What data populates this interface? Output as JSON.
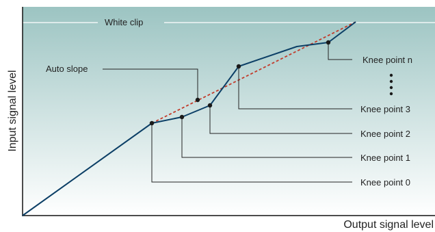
{
  "axes": {
    "x_label": "Output signal level",
    "y_label": "Input signal level"
  },
  "labels": {
    "white_clip": "White clip",
    "auto_slope": "Auto slope",
    "knee_point_n": "Knee point n",
    "knee_point_3": "Knee point 3",
    "knee_point_2": "Knee point 2",
    "knee_point_1": "Knee point 1",
    "knee_point_0": "Knee point 0"
  },
  "colors": {
    "background_top": "#9cc4c2",
    "background_bottom": "#ffffff",
    "curve": "#0c3f66",
    "auto_slope_line": "#c23a2a",
    "leader_lines": "#222222",
    "white_clip_line": "#ffffff",
    "axis": "#111111"
  }
}
